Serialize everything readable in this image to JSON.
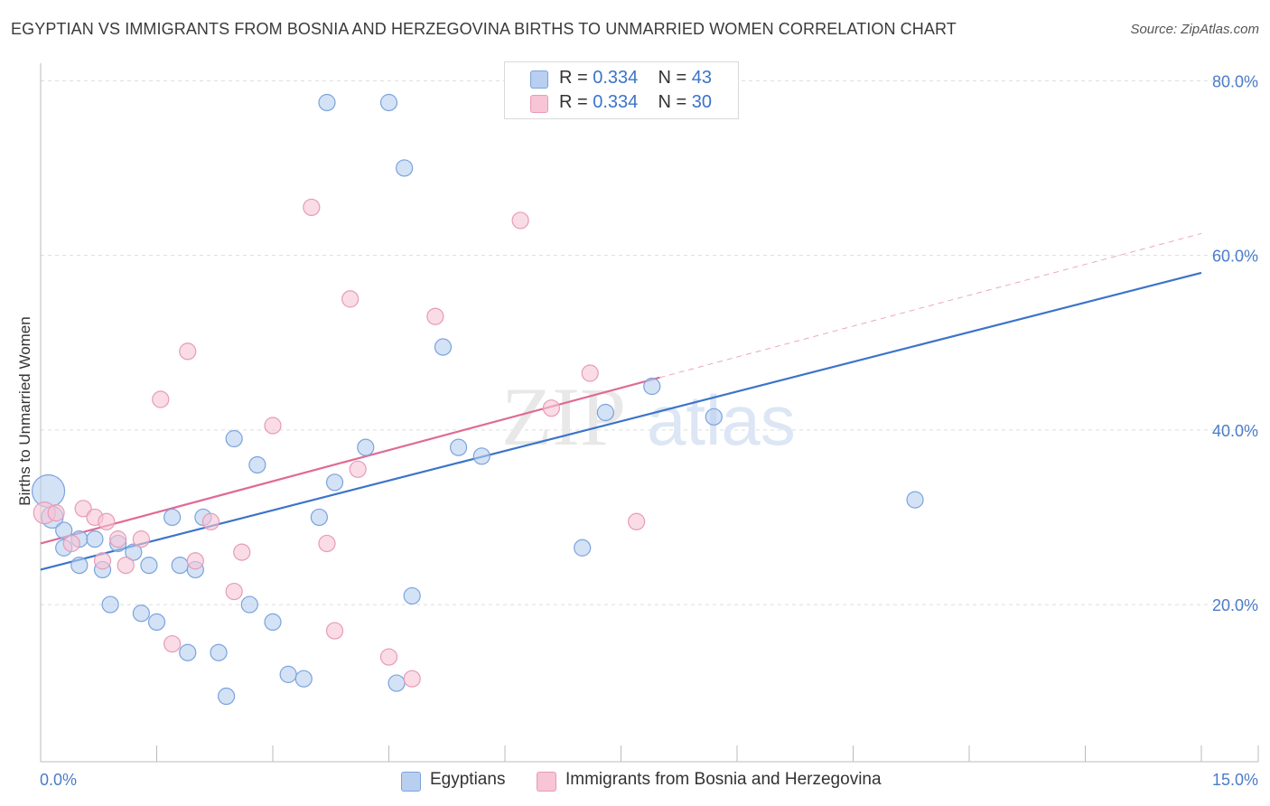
{
  "title": "EGYPTIAN VS IMMIGRANTS FROM BOSNIA AND HERZEGOVINA BIRTHS TO UNMARRIED WOMEN CORRELATION CHART",
  "source": "Source: ZipAtlas.com",
  "watermark": {
    "zip": "ZIP",
    "atlas": "atlas"
  },
  "legend_top": {
    "rows": [
      {
        "r_label": "R = ",
        "r_value": "0.334",
        "n_label": "N = ",
        "n_value": "43"
      },
      {
        "r_label": "R = ",
        "r_value": "0.334",
        "n_label": "N = ",
        "n_value": "30"
      }
    ]
  },
  "colors": {
    "blue_fill": "#b8cff0",
    "blue_stroke": "#7aa3dc",
    "blue_line": "#3b74c9",
    "pink_fill": "#f7c5d5",
    "pink_stroke": "#e79bb5",
    "pink_line": "#e06a95",
    "grid": "#dddddd",
    "tick_text": "#4a7cc9"
  },
  "chart_data": {
    "type": "scatter",
    "title": "EGYPTIAN VS IMMIGRANTS FROM BOSNIA AND HERZEGOVINA BIRTHS TO UNMARRIED WOMEN CORRELATION CHART",
    "xlabel": "",
    "ylabel": "Births to Unmarried Women",
    "xlim": [
      0,
      15
    ],
    "ylim": [
      2,
      82
    ],
    "x_tick_labels": [
      "0.0%",
      "15.0%"
    ],
    "y_ticks": [
      20,
      40,
      60,
      80
    ],
    "y_tick_labels": [
      "20.0%",
      "40.0%",
      "60.0%",
      "80.0%"
    ],
    "grid": true,
    "series": [
      {
        "name": "Egyptians",
        "color": "#b8cff0",
        "points": [
          [
            0.1,
            33.0,
            18
          ],
          [
            0.15,
            30.0,
            12
          ],
          [
            0.3,
            28.5,
            10
          ],
          [
            0.3,
            26.5,
            10
          ],
          [
            0.5,
            27.5,
            10
          ],
          [
            0.5,
            24.5,
            10
          ],
          [
            0.7,
            27.5,
            10
          ],
          [
            0.8,
            24.0,
            10
          ],
          [
            0.9,
            20.0,
            10
          ],
          [
            1.0,
            27.0,
            10
          ],
          [
            1.2,
            26.0,
            10
          ],
          [
            1.3,
            19.0,
            10
          ],
          [
            1.4,
            24.5,
            10
          ],
          [
            1.5,
            18.0,
            10
          ],
          [
            1.7,
            30.0,
            10
          ],
          [
            1.8,
            24.5,
            10
          ],
          [
            1.9,
            14.5,
            10
          ],
          [
            2.0,
            24.0,
            10
          ],
          [
            2.1,
            30.0,
            10
          ],
          [
            2.3,
            14.5,
            10
          ],
          [
            2.4,
            9.5,
            10
          ],
          [
            2.5,
            39.0,
            10
          ],
          [
            2.7,
            20.0,
            10
          ],
          [
            2.8,
            36.0,
            10
          ],
          [
            3.0,
            18.0,
            10
          ],
          [
            3.2,
            12.0,
            10
          ],
          [
            3.4,
            11.5,
            10
          ],
          [
            3.6,
            30.0,
            10
          ],
          [
            3.7,
            77.5,
            10
          ],
          [
            3.8,
            34.0,
            10
          ],
          [
            4.2,
            38.0,
            10
          ],
          [
            4.5,
            77.5,
            10
          ],
          [
            4.6,
            11.0,
            10
          ],
          [
            4.7,
            70.0,
            10
          ],
          [
            4.8,
            21.0,
            10
          ],
          [
            5.2,
            49.5,
            10
          ],
          [
            5.4,
            38.0,
            10
          ],
          [
            5.7,
            37.0,
            10
          ],
          [
            7.0,
            26.5,
            10
          ],
          [
            7.3,
            42.0,
            10
          ],
          [
            7.9,
            45.0,
            10
          ],
          [
            8.7,
            41.5,
            10
          ],
          [
            11.3,
            32.0,
            10
          ]
        ],
        "trend": {
          "x0": 0,
          "y0": 24.0,
          "x1": 15,
          "y1": 58.0
        }
      },
      {
        "name": "Immigrants from Bosnia and Herzegovina",
        "color": "#f7c5d5",
        "points": [
          [
            0.05,
            30.5,
            12
          ],
          [
            0.2,
            30.5,
            10
          ],
          [
            0.4,
            27.0,
            10
          ],
          [
            0.55,
            31.0,
            10
          ],
          [
            0.7,
            30.0,
            10
          ],
          [
            0.8,
            25.0,
            10
          ],
          [
            0.85,
            29.5,
            10
          ],
          [
            1.0,
            27.5,
            10
          ],
          [
            1.1,
            24.5,
            10
          ],
          [
            1.3,
            27.5,
            10
          ],
          [
            1.55,
            43.5,
            10
          ],
          [
            1.7,
            15.5,
            10
          ],
          [
            1.9,
            49.0,
            10
          ],
          [
            2.0,
            25.0,
            10
          ],
          [
            2.2,
            29.5,
            10
          ],
          [
            2.5,
            21.5,
            10
          ],
          [
            2.6,
            26.0,
            10
          ],
          [
            3.0,
            40.5,
            10
          ],
          [
            3.5,
            65.5,
            10
          ],
          [
            3.7,
            27.0,
            10
          ],
          [
            3.8,
            17.0,
            10
          ],
          [
            4.0,
            55.0,
            10
          ],
          [
            4.1,
            35.5,
            10
          ],
          [
            4.5,
            14.0,
            10
          ],
          [
            4.8,
            11.5,
            10
          ],
          [
            5.1,
            53.0,
            10
          ],
          [
            6.2,
            64.0,
            10
          ],
          [
            6.6,
            42.5,
            10
          ],
          [
            7.1,
            46.5,
            10
          ],
          [
            7.7,
            29.5,
            10
          ]
        ],
        "trend": {
          "x0": 0,
          "y0": 27.0,
          "x1": 8.0,
          "y1": 46.0
        },
        "trend_dashed": {
          "x0": 8.0,
          "y0": 46.0,
          "x1": 15,
          "y1": 62.5
        }
      }
    ],
    "legend_placement": "top-center"
  },
  "bottom_legend": {
    "items": [
      {
        "label": "Egyptians"
      },
      {
        "label": "Immigrants from Bosnia and Herzegovina"
      }
    ]
  }
}
